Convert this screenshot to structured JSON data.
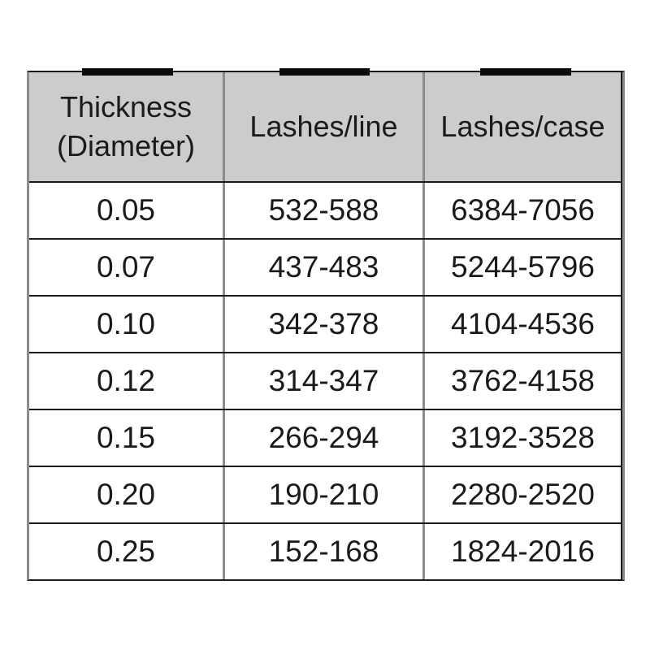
{
  "table": {
    "headers": [
      {
        "line1": "Thickness",
        "line2": "(Diameter)"
      },
      {
        "line1": "Lashes/line",
        "line2": ""
      },
      {
        "line1": "Lashes/case",
        "line2": ""
      }
    ],
    "colors": {
      "header_background": "#cccccc",
      "horizontal_lines": "#1a1a1a",
      "vertical_lines": "#8c8c8c",
      "text": "#1a1a1a",
      "tab_marks": "#0a0a0a",
      "page_background": "#ffffff"
    }
  },
  "chart_data": {
    "type": "table",
    "title": "",
    "columns": [
      "Thickness (Diameter)",
      "Lashes/line",
      "Lashes/case"
    ],
    "rows": [
      [
        "0.05",
        "532-588",
        "6384-7056"
      ],
      [
        "0.07",
        "437-483",
        "5244-5796"
      ],
      [
        "0.10",
        "342-378",
        "4104-4536"
      ],
      [
        "0.12",
        "314-347",
        "3762-4158"
      ],
      [
        "0.15",
        "266-294",
        "3192-3528"
      ],
      [
        "0.20",
        "190-210",
        "2280-2520"
      ],
      [
        "0.25",
        "152-168",
        "1824-2016"
      ]
    ]
  }
}
